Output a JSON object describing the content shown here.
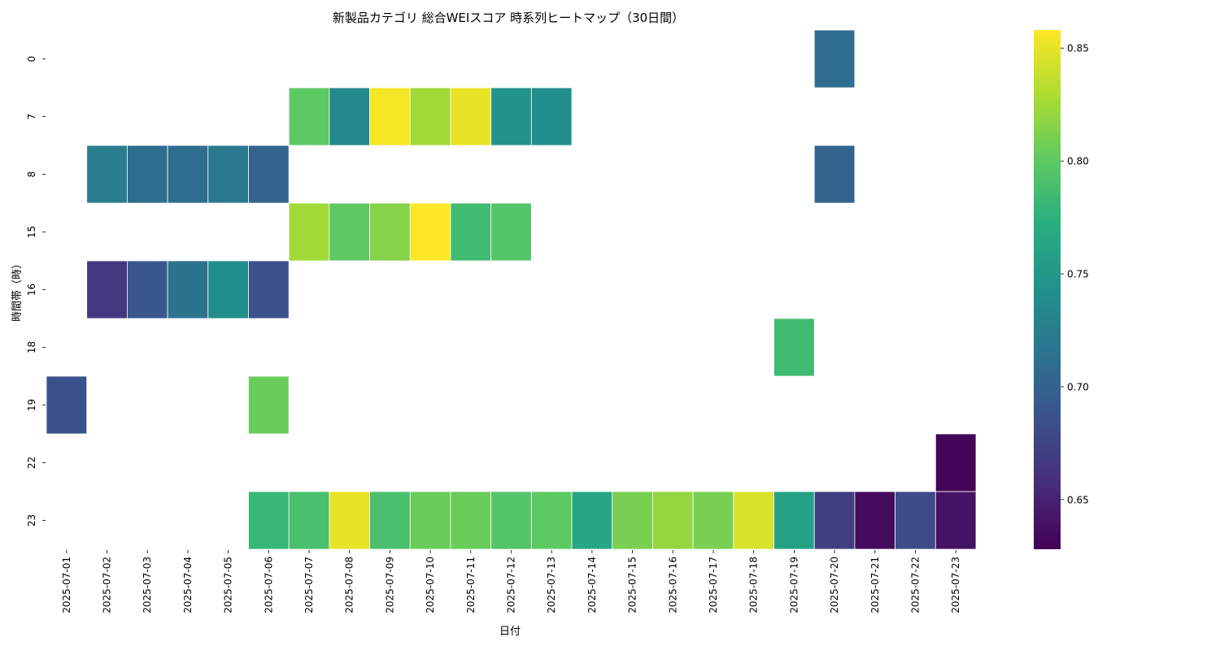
{
  "chart_data": {
    "type": "heatmap",
    "title": "新製品カテゴリ 総合WEIスコア 時系列ヒートマップ（30日間）",
    "xlabel": "日付",
    "ylabel": "時間帯（時）",
    "x": [
      "2025-07-01",
      "2025-07-02",
      "2025-07-03",
      "2025-07-04",
      "2025-07-05",
      "2025-07-06",
      "2025-07-07",
      "2025-07-08",
      "2025-07-09",
      "2025-07-10",
      "2025-07-11",
      "2025-07-12",
      "2025-07-13",
      "2025-07-14",
      "2025-07-15",
      "2025-07-16",
      "2025-07-17",
      "2025-07-18",
      "2025-07-19",
      "2025-07-20",
      "2025-07-21",
      "2025-07-22",
      "2025-07-23"
    ],
    "y": [
      "0",
      "7",
      "8",
      "15",
      "16",
      "18",
      "19",
      "22",
      "23"
    ],
    "values": [
      [
        null,
        null,
        null,
        null,
        null,
        null,
        null,
        null,
        null,
        null,
        null,
        null,
        null,
        null,
        null,
        null,
        null,
        null,
        null,
        0.71,
        null,
        null,
        null
      ],
      [
        null,
        null,
        null,
        null,
        null,
        null,
        0.8,
        0.735,
        0.855,
        0.825,
        0.85,
        0.745,
        0.74,
        null,
        null,
        null,
        null,
        null,
        null,
        null,
        null,
        null,
        null
      ],
      [
        null,
        0.725,
        0.71,
        0.71,
        0.72,
        0.7,
        null,
        null,
        null,
        null,
        null,
        null,
        null,
        null,
        null,
        null,
        null,
        null,
        null,
        0.7,
        null,
        null,
        null
      ],
      [
        null,
        null,
        null,
        null,
        null,
        null,
        0.825,
        0.8,
        0.815,
        0.858,
        0.785,
        0.795,
        null,
        null,
        null,
        null,
        null,
        null,
        null,
        null,
        null,
        null,
        null
      ],
      [
        null,
        0.665,
        0.69,
        0.715,
        0.74,
        0.685,
        null,
        null,
        null,
        null,
        null,
        null,
        null,
        null,
        null,
        null,
        null,
        null,
        null,
        null,
        null,
        null,
        null
      ],
      [
        null,
        null,
        null,
        null,
        null,
        null,
        null,
        null,
        null,
        null,
        null,
        null,
        null,
        null,
        null,
        null,
        null,
        null,
        0.785,
        null,
        null,
        null,
        null
      ],
      [
        0.685,
        null,
        null,
        null,
        null,
        0.805,
        null,
        null,
        null,
        null,
        null,
        null,
        null,
        null,
        null,
        null,
        null,
        null,
        null,
        null,
        null,
        null,
        null
      ],
      [
        null,
        null,
        null,
        null,
        null,
        null,
        null,
        null,
        null,
        null,
        null,
        null,
        null,
        null,
        null,
        null,
        null,
        null,
        null,
        null,
        null,
        null,
        0.63
      ],
      [
        null,
        null,
        null,
        null,
        null,
        0.78,
        0.79,
        0.85,
        0.79,
        0.805,
        0.805,
        0.795,
        0.8,
        0.765,
        0.81,
        0.82,
        0.81,
        0.845,
        0.76,
        0.67,
        0.635,
        0.68,
        0.64
      ]
    ],
    "colorbar": {
      "range": [
        0.628,
        0.858
      ],
      "ticks": [
        0.65,
        0.7,
        0.75,
        0.8,
        0.85
      ],
      "tick_labels": [
        "0.65",
        "0.70",
        "0.75",
        "0.80",
        "0.85"
      ]
    },
    "colormap": "viridis",
    "grid": false
  }
}
